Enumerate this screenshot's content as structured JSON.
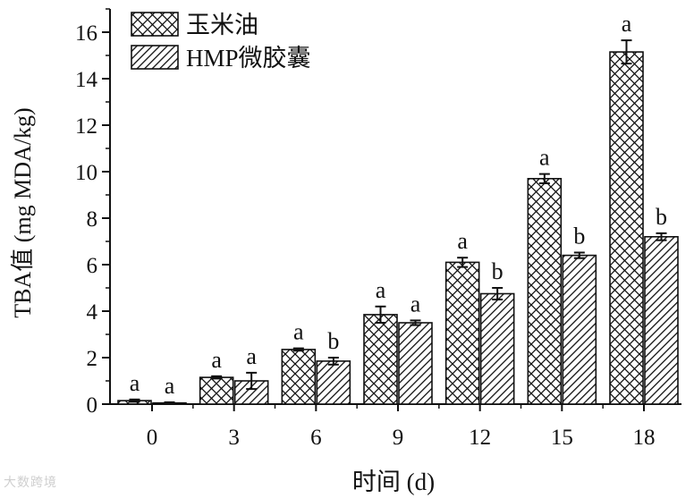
{
  "chart_data": {
    "type": "bar",
    "xlabel": "时间 (d)",
    "ylabel": "TBA值 (mg MDA/kg)",
    "categories": [
      "0",
      "3",
      "6",
      "9",
      "12",
      "15",
      "18"
    ],
    "ylim": [
      0,
      17
    ],
    "yticks": [
      "0",
      "2",
      "4",
      "6",
      "8",
      "10",
      "12",
      "14",
      "16"
    ],
    "grid": false,
    "legend_position": "top-left",
    "series": [
      {
        "name": "玉米油",
        "pattern": "crosshatch",
        "values": [
          0.15,
          1.15,
          2.35,
          3.85,
          6.1,
          9.7,
          15.15
        ],
        "errors": [
          0.05,
          0.05,
          0.05,
          0.35,
          0.2,
          0.2,
          0.5
        ],
        "labels": [
          "a",
          "a",
          "a",
          "a",
          "a",
          "a",
          "a"
        ]
      },
      {
        "name": "HMP微胶囊",
        "pattern": "diagonal",
        "values": [
          0.05,
          1.0,
          1.85,
          3.5,
          4.75,
          6.4,
          7.2
        ],
        "errors": [
          0.03,
          0.35,
          0.15,
          0.1,
          0.25,
          0.12,
          0.15
        ],
        "labels": [
          "a",
          "a",
          "b",
          "a",
          "b",
          "b",
          "b"
        ]
      }
    ]
  },
  "watermark": "大数跨境"
}
